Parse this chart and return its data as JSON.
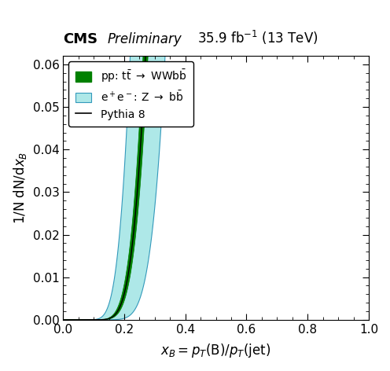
{
  "title_bold": "CMS",
  "title_italic": "Preliminary",
  "title_lumi": "35.9 fb",
  "title_energy": "(13 TeV)",
  "ylabel": "1/N dN/d$x_B$",
  "xlabel": "$x_\\mathrm{B}$$=$$p_\\mathrm{T}$(B)/$p_\\mathrm{T}$(jet)",
  "xlim": [
    0,
    1.0
  ],
  "ylim": [
    0,
    0.062
  ],
  "yticks": [
    0,
    0.01,
    0.02,
    0.03,
    0.04,
    0.05,
    0.06
  ],
  "xticks": [
    0,
    0.2,
    0.4,
    0.6,
    0.8,
    1.0
  ],
  "green_color": "#008000",
  "cyan_color": "#aee8e8",
  "cyan_edge_color": "#3399bb",
  "figsize": [
    4.96,
    4.72
  ],
  "dpi": 100,
  "central_a": 0.3,
  "central_b": 0.058,
  "pp_a_lo": 0.27,
  "pp_b_lo": 0.054,
  "pp_a_hi": 0.33,
  "pp_b_hi": 0.062,
  "ee_a_lo": 0.2,
  "ee_b_lo": 0.048,
  "ee_a_hi": 0.42,
  "ee_b_hi": 0.072
}
